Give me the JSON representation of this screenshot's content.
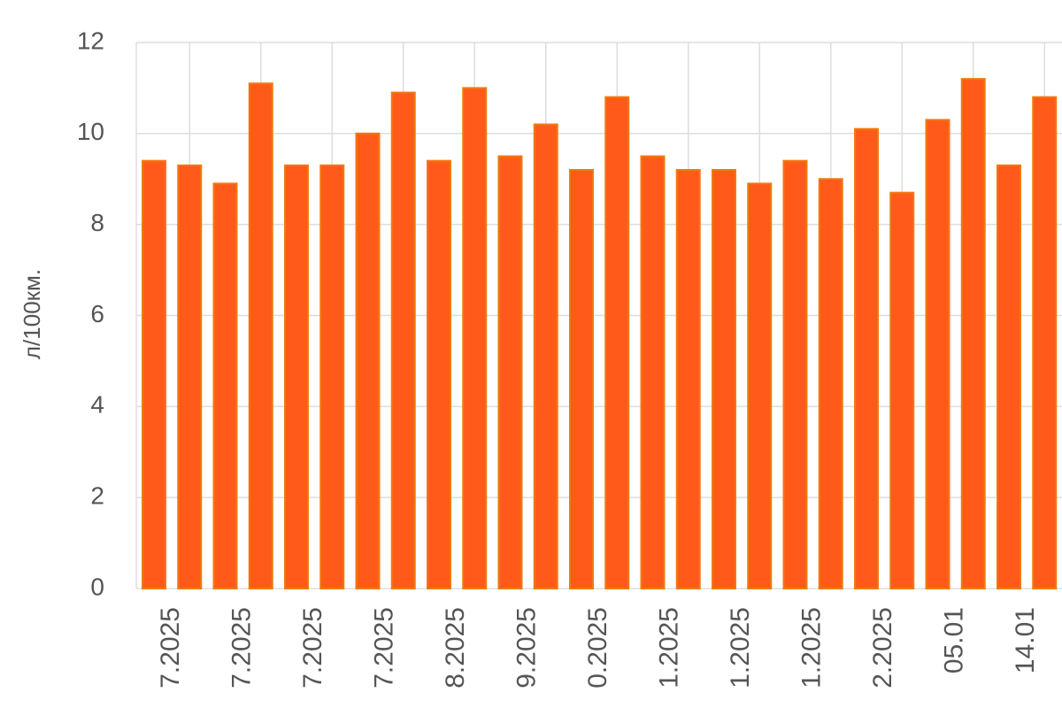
{
  "chart_data": {
    "type": "bar",
    "y_label": "л/100км.",
    "categories": [
      null,
      "7.2025",
      null,
      "7.2025",
      null,
      "7.2025",
      null,
      "7.2025",
      null,
      "8.2025",
      null,
      "9.2025",
      null,
      "0.2025",
      null,
      "1.2025",
      null,
      "1.2025",
      null,
      "1.2025",
      null,
      "2.2025",
      null,
      "05.01",
      null,
      "14.01"
    ],
    "values": [
      9.4,
      9.3,
      8.9,
      11.1,
      9.3,
      9.3,
      10.0,
      10.9,
      9.4,
      11.0,
      9.5,
      10.2,
      9.2,
      10.8,
      9.5,
      9.2,
      9.2,
      8.9,
      9.4,
      9.0,
      10.1,
      8.7,
      10.3,
      11.2,
      9.3,
      10.8
    ],
    "color": "#ff5a1a",
    "ylim": [
      0,
      12
    ],
    "yticks": [
      0,
      2,
      4,
      6,
      8,
      10,
      12
    ],
    "grid": true
  }
}
